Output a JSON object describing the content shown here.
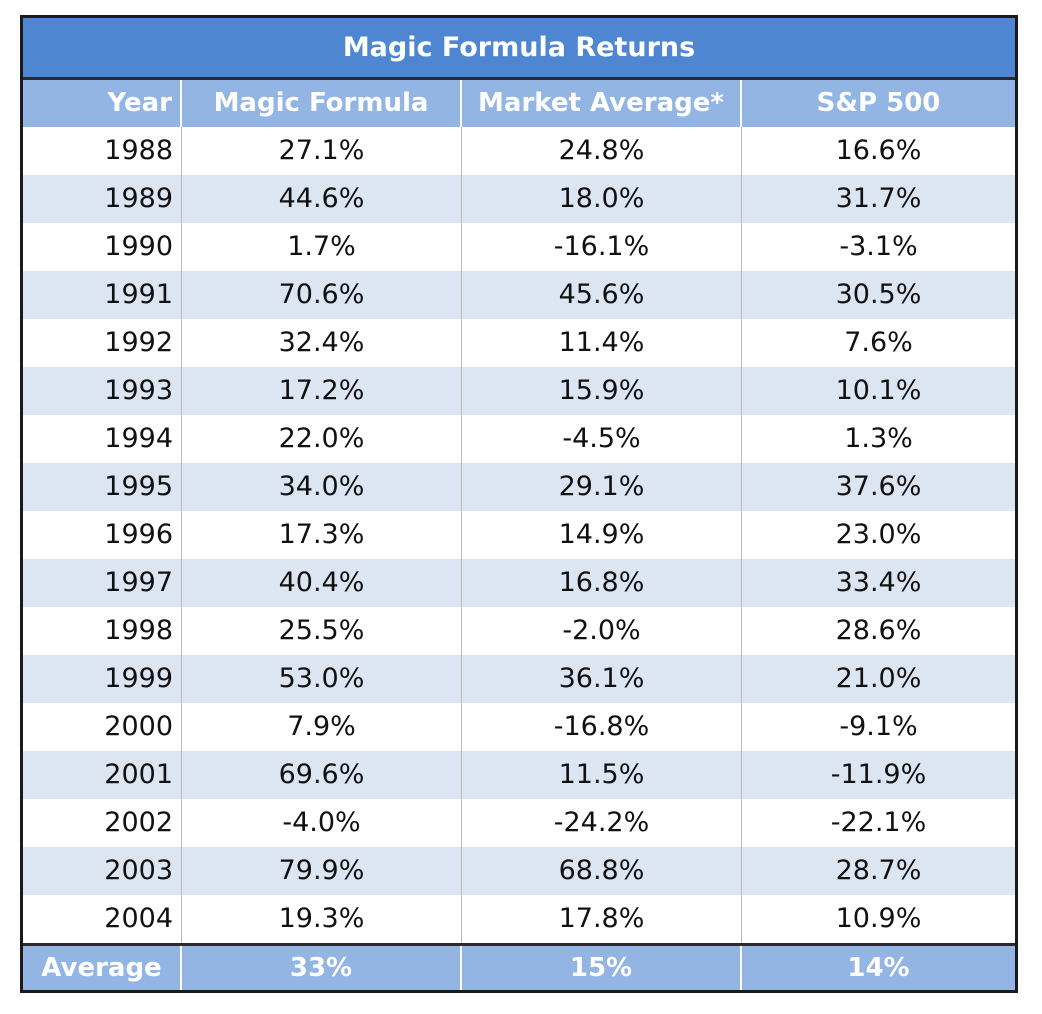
{
  "chart_data": {
    "type": "table",
    "title": "Magic Formula Returns",
    "columns": [
      "Year",
      "Magic Formula",
      "Market Average*",
      "S&P 500"
    ],
    "rows": [
      [
        "1988",
        "27.1%",
        "24.8%",
        "16.6%"
      ],
      [
        "1989",
        "44.6%",
        "18.0%",
        "31.7%"
      ],
      [
        "1990",
        "1.7%",
        "-16.1%",
        "-3.1%"
      ],
      [
        "1991",
        "70.6%",
        "45.6%",
        "30.5%"
      ],
      [
        "1992",
        "32.4%",
        "11.4%",
        "7.6%"
      ],
      [
        "1993",
        "17.2%",
        "15.9%",
        "10.1%"
      ],
      [
        "1994",
        "22.0%",
        "-4.5%",
        "1.3%"
      ],
      [
        "1995",
        "34.0%",
        "29.1%",
        "37.6%"
      ],
      [
        "1996",
        "17.3%",
        "14.9%",
        "23.0%"
      ],
      [
        "1997",
        "40.4%",
        "16.8%",
        "33.4%"
      ],
      [
        "1998",
        "25.5%",
        "-2.0%",
        "28.6%"
      ],
      [
        "1999",
        "53.0%",
        "36.1%",
        "21.0%"
      ],
      [
        "2000",
        "7.9%",
        "-16.8%",
        "-9.1%"
      ],
      [
        "2001",
        "69.6%",
        "11.5%",
        "-11.9%"
      ],
      [
        "2002",
        "-4.0%",
        "-24.2%",
        "-22.1%"
      ],
      [
        "2003",
        "79.9%",
        "68.8%",
        "28.7%"
      ],
      [
        "2004",
        "19.3%",
        "17.8%",
        "10.9%"
      ]
    ],
    "footer": [
      "Average",
      "33%",
      "15%",
      "14%"
    ]
  },
  "colors": {
    "title_bg": "#4f86d2",
    "header_bg": "#93b5e3",
    "band_bg": "#dce6f3",
    "text": "#111111",
    "header_text": "#ffffff"
  }
}
